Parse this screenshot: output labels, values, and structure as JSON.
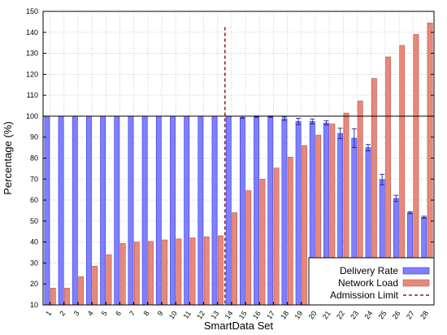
{
  "chart_data": {
    "type": "bar",
    "xlabel": "SmartData Set",
    "ylabel": "Percentage (%)",
    "ylim": [
      10,
      150
    ],
    "yticks": [
      10,
      20,
      30,
      40,
      50,
      60,
      70,
      80,
      90,
      100,
      110,
      120,
      130,
      140,
      150
    ],
    "categories": [
      "1",
      "2",
      "3",
      "4",
      "5",
      "6",
      "7",
      "8",
      "9",
      "10",
      "11",
      "12",
      "13",
      "14",
      "15",
      "16",
      "17",
      "18",
      "19",
      "20",
      "21",
      "22",
      "23",
      "24",
      "25",
      "26",
      "27",
      "28"
    ],
    "grid": true,
    "legend_position": "bottom-right",
    "reference_line_y": 100,
    "admission_limit_after_category": "13",
    "series": [
      {
        "name": "Delivery Rate",
        "color": "#7f7fff",
        "values": [
          100,
          100,
          100,
          100,
          100,
          100,
          100,
          100,
          100,
          100,
          100,
          100,
          100,
          100,
          99.5,
          99.8,
          99.8,
          98.8,
          97.5,
          97.5,
          96.8,
          91.8,
          89.5,
          85,
          69.8,
          60.8,
          54,
          51.8
        ],
        "errors": [
          0,
          0,
          0,
          0,
          0,
          0,
          0,
          0,
          0,
          0,
          0,
          0,
          0,
          0,
          0.5,
          0.3,
          0.3,
          0.8,
          1.5,
          1.2,
          1,
          2.5,
          4.5,
          1.5,
          2.5,
          1.5,
          0.5,
          0.5
        ]
      },
      {
        "name": "Network Load",
        "color": "#e8887a",
        "values": [
          18,
          18,
          23.5,
          28.5,
          34,
          39.3,
          40,
          40.3,
          41,
          41.5,
          42,
          42.5,
          43,
          54,
          64.5,
          70,
          75.3,
          80.5,
          86,
          91,
          96.3,
          101.5,
          107.3,
          118,
          128.3,
          133.8,
          139,
          144.5
        ]
      }
    ],
    "admission_limit_label": "Admission Limit"
  }
}
